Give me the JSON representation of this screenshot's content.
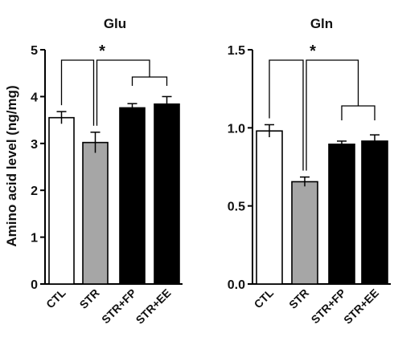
{
  "chart_data": [
    {
      "type": "bar",
      "title": "Glu",
      "ylabel": "Amino acid level (ng/mg)",
      "categories": [
        "CTL",
        "STR",
        "STR+FP",
        "STR+EE"
      ],
      "values": [
        3.55,
        3.02,
        3.76,
        3.84
      ],
      "errors": [
        0.13,
        0.22,
        0.09,
        0.16
      ],
      "bar_colors": [
        "#ffffff",
        "#a6a6a6",
        "#000000",
        "#000000"
      ],
      "ylim": [
        0,
        5
      ],
      "yticks": [
        "0",
        "1",
        "2",
        "3",
        "4",
        "5"
      ],
      "annotation": "*",
      "grid": false
    },
    {
      "type": "bar",
      "title": "Gln",
      "ylabel": "",
      "categories": [
        "CTL",
        "STR",
        "STR+FP",
        "STR+EE"
      ],
      "values": [
        0.98,
        0.655,
        0.895,
        0.915
      ],
      "errors": [
        0.04,
        0.03,
        0.02,
        0.04
      ],
      "bar_colors": [
        "#ffffff",
        "#a6a6a6",
        "#000000",
        "#000000"
      ],
      "ylim": [
        0,
        1.5
      ],
      "yticks": [
        "0.0",
        "0.5",
        "1.0",
        "1.5"
      ],
      "annotation": "*",
      "grid": false
    }
  ]
}
